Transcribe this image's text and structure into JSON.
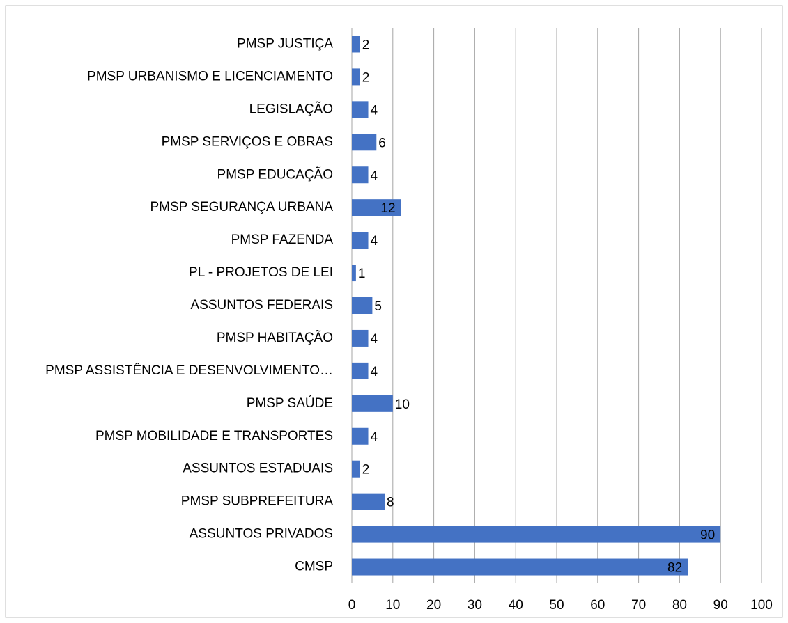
{
  "chart_data": {
    "type": "barh",
    "categories": [
      "PMSP JUSTIÇA",
      "PMSP URBANISMO E LICENCIAMENTO",
      "LEGISLAÇÃO",
      "PMSP SERVIÇOS E OBRAS",
      "PMSP EDUCAÇÃO",
      "PMSP SEGURANÇA URBANA",
      "PMSP FAZENDA",
      "PL - PROJETOS DE LEI",
      "ASSUNTOS FEDERAIS",
      "PMSP HABITAÇÃO",
      "PMSP ASSISTÊNCIA E DESENVOLVIMENTO…",
      "PMSP SAÚDE",
      "PMSP MOBILIDADE E TRANSPORTES",
      "ASSUNTOS ESTADUAIS",
      "PMSP SUBPREFEITURA",
      "ASSUNTOS PRIVADOS",
      "CMSP"
    ],
    "values": [
      2,
      2,
      4,
      6,
      4,
      12,
      4,
      1,
      5,
      4,
      4,
      10,
      4,
      2,
      8,
      90,
      82
    ],
    "color": "#4472c4",
    "xlim": [
      0,
      100
    ],
    "xticks": [
      0,
      10,
      20,
      30,
      40,
      50,
      60,
      70,
      80,
      90,
      100
    ],
    "grid": true
  }
}
